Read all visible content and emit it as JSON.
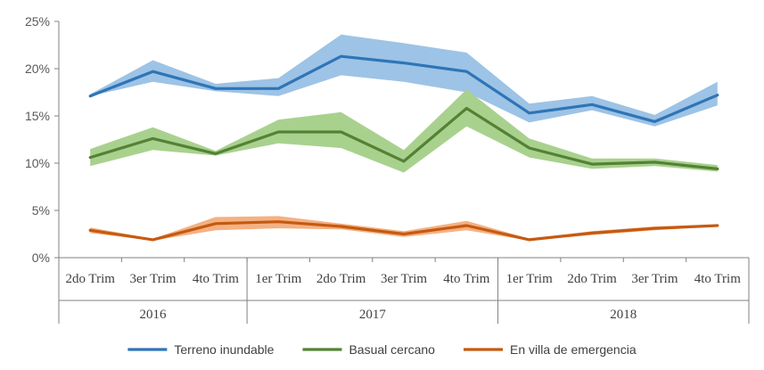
{
  "chart_data": {
    "type": "line",
    "categories": [
      "2do Trim",
      "3er Trim",
      "4to Trim",
      "1er Trim",
      "2do Trim",
      "3er Trim",
      "4to Trim",
      "1er Trim",
      "2do Trim",
      "3er Trim",
      "4to Trim"
    ],
    "groups": [
      {
        "label": "2016",
        "count": 3
      },
      {
        "label": "2017",
        "count": 4
      },
      {
        "label": "2018",
        "count": 4
      }
    ],
    "ylim": [
      0,
      25
    ],
    "yticks": [
      0,
      5,
      10,
      15,
      20,
      25
    ],
    "ytick_labels": [
      "0%",
      "5%",
      "10%",
      "15%",
      "20%",
      "25%"
    ],
    "grid": false,
    "legend": "bottom",
    "series": [
      {
        "name": "Terreno inundable",
        "color": "#2E75B6",
        "band_color": "#9DC3E6",
        "values": [
          17.1,
          19.7,
          17.9,
          17.9,
          21.3,
          20.6,
          19.7,
          15.3,
          16.2,
          14.4,
          17.2
        ],
        "lower": [
          17.1,
          18.6,
          17.6,
          17.1,
          19.3,
          18.6,
          17.5,
          14.3,
          15.6,
          13.9,
          16.1
        ],
        "upper": [
          17.3,
          20.9,
          18.4,
          19.0,
          23.6,
          22.7,
          21.7,
          16.3,
          17.1,
          15.1,
          18.6
        ]
      },
      {
        "name": "Basual cercano",
        "color": "#548235",
        "band_color": "#A9D18E",
        "values": [
          10.6,
          12.6,
          11.0,
          13.3,
          13.3,
          10.2,
          15.8,
          11.6,
          9.9,
          10.1,
          9.4
        ],
        "lower": [
          9.7,
          11.4,
          10.8,
          12.1,
          11.6,
          9.0,
          13.9,
          10.6,
          9.4,
          9.7,
          9.1
        ],
        "upper": [
          11.5,
          13.8,
          11.3,
          14.6,
          15.4,
          11.4,
          17.8,
          12.6,
          10.5,
          10.5,
          9.8
        ]
      },
      {
        "name": "En villa de emergencia",
        "color": "#C55A11",
        "band_color": "#F4B183",
        "values": [
          2.9,
          1.9,
          3.6,
          3.8,
          3.3,
          2.5,
          3.4,
          1.9,
          2.6,
          3.1,
          3.4
        ],
        "lower": [
          2.6,
          1.8,
          2.9,
          3.1,
          3.0,
          2.2,
          2.9,
          1.8,
          2.4,
          2.9,
          3.3
        ],
        "upper": [
          3.2,
          2.0,
          4.3,
          4.4,
          3.6,
          2.8,
          3.9,
          2.0,
          2.8,
          3.3,
          3.5
        ]
      }
    ]
  }
}
